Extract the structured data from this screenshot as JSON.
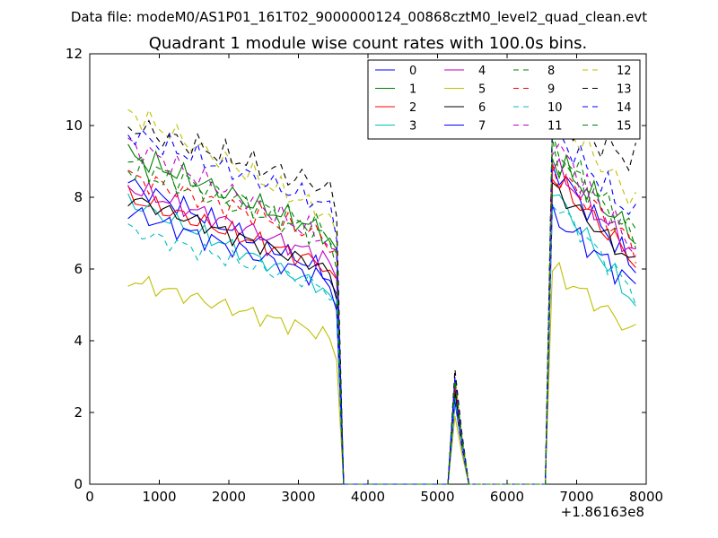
{
  "figure": {
    "suptitle": "Data file: modeM0/AS1P01_161T02_9000000124_00868cztM0_level2_quad_clean.evt"
  },
  "chart_data": {
    "type": "line",
    "title": "Quadrant 1 module wise count rates with 100.0s bins.",
    "xlabel": "",
    "ylabel": "",
    "x_offset_label": "+1.86163e8",
    "xlim": [
      0,
      8000
    ],
    "ylim": [
      0,
      12
    ],
    "x_ticks": [
      0,
      1000,
      2000,
      3000,
      4000,
      5000,
      6000,
      7000,
      8000
    ],
    "y_ticks": [
      0,
      2,
      4,
      6,
      8,
      10,
      12
    ],
    "x_tick_labels": [
      "0",
      "1000",
      "2000",
      "3000",
      "4000",
      "5000",
      "6000",
      "7000",
      "8000"
    ],
    "y_tick_labels": [
      "0",
      "2",
      "4",
      "6",
      "8",
      "10",
      "12"
    ],
    "legend_position": "top-right",
    "x": [
      550,
      650,
      750,
      850,
      950,
      1050,
      1150,
      1250,
      1350,
      1450,
      1550,
      1650,
      1750,
      1850,
      1950,
      2050,
      2150,
      2250,
      2350,
      2450,
      2550,
      2650,
      2750,
      2850,
      2950,
      3050,
      3150,
      3250,
      3350,
      3450,
      3550,
      3650,
      3750,
      3850,
      3950,
      4050,
      4150,
      4250,
      4350,
      4450,
      4550,
      4650,
      4750,
      4850,
      4950,
      5050,
      5150,
      5250,
      5350,
      5450,
      5550,
      5650,
      5750,
      5850,
      5950,
      6050,
      6150,
      6250,
      6350,
      6450,
      6550,
      6650,
      6750,
      6850,
      6950,
      7050,
      7150,
      7250,
      7350,
      7450,
      7550,
      7650,
      7750,
      7850
    ],
    "series": [
      {
        "name": "0",
        "color": "#0000ff",
        "dashed": false,
        "start": 8.4,
        "end": 5.8,
        "ripple": 0.35,
        "phase": 0.0,
        "on_start": 8.9,
        "on_end": 6.0,
        "spike": 2.6
      },
      {
        "name": "1",
        "color": "#008000",
        "dashed": false,
        "start": 9.2,
        "end": 6.9,
        "ripple": 0.4,
        "phase": 0.7,
        "on_start": 9.1,
        "on_end": 6.9,
        "spike": 2.8
      },
      {
        "name": "2",
        "color": "#ff0000",
        "dashed": false,
        "start": 8.0,
        "end": 6.0,
        "ripple": 0.35,
        "phase": 1.4,
        "on_start": 8.6,
        "on_end": 6.2,
        "spike": 2.7
      },
      {
        "name": "3",
        "color": "#00bfbf",
        "dashed": false,
        "start": 7.9,
        "end": 5.3,
        "ripple": 0.3,
        "phase": 2.1,
        "on_start": 8.2,
        "on_end": 5.0,
        "spike": 2.4
      },
      {
        "name": "4",
        "color": "#bf00bf",
        "dashed": false,
        "start": 8.3,
        "end": 6.2,
        "ripple": 0.35,
        "phase": 2.8,
        "on_start": 8.9,
        "on_end": 6.4,
        "spike": 2.6
      },
      {
        "name": "5",
        "color": "#bfbf00",
        "dashed": false,
        "start": 5.7,
        "end": 4.1,
        "ripple": 0.3,
        "phase": 3.5,
        "on_start": 6.0,
        "on_end": 4.2,
        "spike": 1.9
      },
      {
        "name": "6",
        "color": "#000000",
        "dashed": false,
        "start": 8.0,
        "end": 5.9,
        "ripple": 0.3,
        "phase": 4.2,
        "on_start": 8.3,
        "on_end": 6.1,
        "spike": 2.6
      },
      {
        "name": "7",
        "color": "#0000ff",
        "dashed": false,
        "start": 7.6,
        "end": 5.6,
        "ripple": 0.35,
        "phase": 4.9,
        "on_start": 7.5,
        "on_end": 5.5,
        "spike": 2.3
      },
      {
        "name": "8",
        "color": "#008000",
        "dashed": true,
        "start": 9.0,
        "end": 7.0,
        "ripple": 0.4,
        "phase": 5.6,
        "on_start": 9.3,
        "on_end": 6.8,
        "spike": 2.9
      },
      {
        "name": "9",
        "color": "#ff0000",
        "dashed": true,
        "start": 8.6,
        "end": 6.8,
        "ripple": 0.4,
        "phase": 6.3,
        "on_start": 8.8,
        "on_end": 6.6,
        "spike": 2.8
      },
      {
        "name": "10",
        "color": "#00bfbf",
        "dashed": true,
        "start": 7.1,
        "end": 5.4,
        "ripple": 0.3,
        "phase": 7.0,
        "on_start": 7.9,
        "on_end": 5.3,
        "spike": 2.4
      },
      {
        "name": "11",
        "color": "#bf00bf",
        "dashed": true,
        "start": 9.5,
        "end": 6.7,
        "ripple": 0.4,
        "phase": 7.7,
        "on_start": 9.6,
        "on_end": 6.5,
        "spike": 2.9
      },
      {
        "name": "12",
        "color": "#bfbf00",
        "dashed": true,
        "start": 10.4,
        "end": 7.4,
        "ripple": 0.4,
        "phase": 8.4,
        "on_start": 10.4,
        "on_end": 7.9,
        "spike": 3.0
      },
      {
        "name": "13",
        "color": "#000000",
        "dashed": true,
        "start": 10.0,
        "end": 8.2,
        "ripple": 0.45,
        "phase": 9.1,
        "on_start": 10.2,
        "on_end": 9.0,
        "spike": 3.2
      },
      {
        "name": "14",
        "color": "#0000ff",
        "dashed": true,
        "start": 9.8,
        "end": 7.7,
        "ripple": 0.4,
        "phase": 9.8,
        "on_start": 9.9,
        "on_end": 7.4,
        "spike": 3.0
      },
      {
        "name": "15",
        "color": "#008000",
        "dashed": true,
        "start": 8.8,
        "end": 6.8,
        "ripple": 0.4,
        "phase": 10.5,
        "on_start": 9.4,
        "on_end": 7.0,
        "spike": 2.9
      }
    ]
  }
}
